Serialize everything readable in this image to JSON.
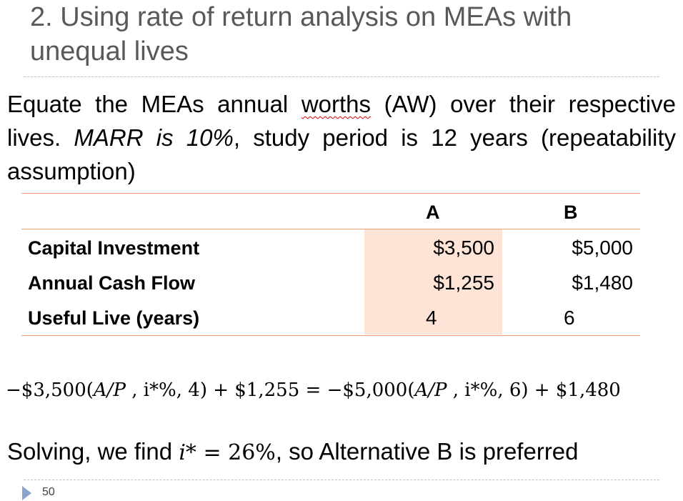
{
  "slide": {
    "title": "2. Using rate of return analysis on MEAs with unequal lives",
    "intro": {
      "part1": "Equate the MEAs annual ",
      "underlined": "worths",
      "part2": " (AW) over their respective lives. ",
      "italic": "MARR is 10%",
      "part3": ", study period is 12 years (repeatability assumption)"
    },
    "table": {
      "headers": [
        "",
        "A",
        "B"
      ],
      "rows": [
        {
          "label": "Capital Investment",
          "a": "$3,500",
          "b": "$5,000"
        },
        {
          "label": "Annual Cash Flow",
          "a": "$1,255",
          "b": "$1,480"
        },
        {
          "label": "Useful Live (years)",
          "a": "4",
          "b": "6"
        }
      ],
      "highlight_color": "#fde4d7",
      "rule_color": "#f0a070"
    },
    "equation": {
      "lhs_amount": "−$3,500(",
      "lhs_factor": "A/P",
      "lhs_rate": " , i*%, 4)",
      "lhs_plus": " + $1,255 = ",
      "rhs_amount": "−$5,000(",
      "rhs_factor": "A/P",
      "rhs_rate": " , i*%, 6)",
      "rhs_plus": " + $1,480"
    },
    "conclusion": {
      "prefix": "Solving, we find ",
      "variable": "i*",
      "equals": " = 26%",
      "suffix": ", so Alternative B is preferred"
    },
    "page_number": "50",
    "nav_icon": "triangle-right-icon",
    "colors": {
      "title": "#595959",
      "divider": "#b4c3d2",
      "nav_arrow": "#8aa2cc"
    }
  }
}
